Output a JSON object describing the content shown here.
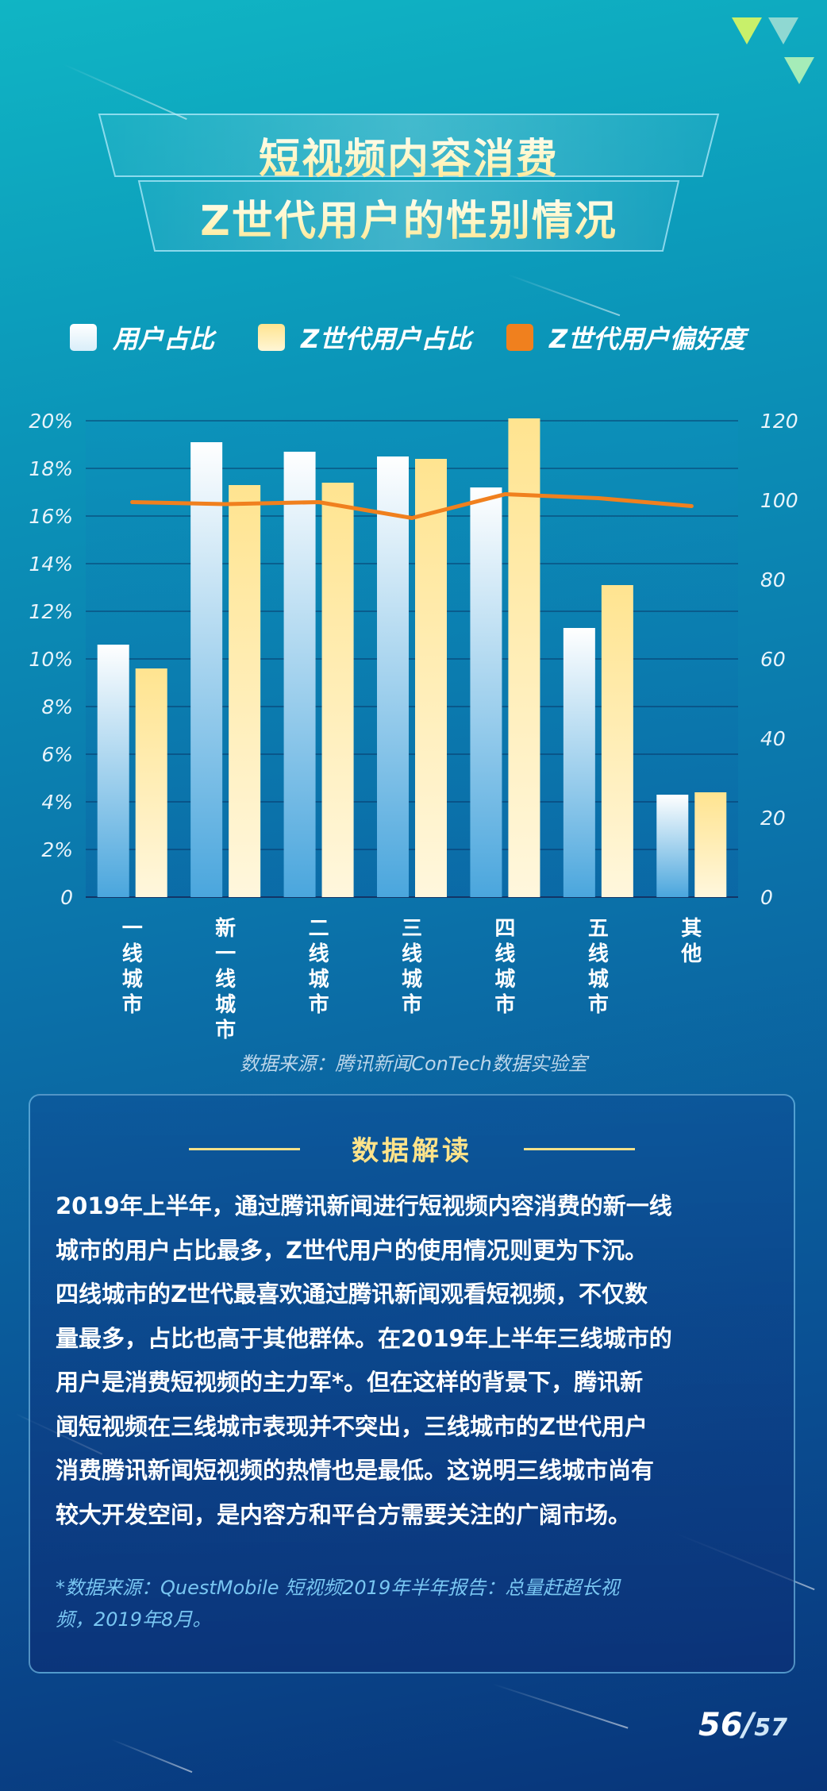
{
  "title": {
    "line1": "短视频内容消费",
    "line2": "Z世代用户的性别情况"
  },
  "colors": {
    "series1": "#ffffff",
    "series1_base": "#4aa6dd",
    "series2": "#ffe490",
    "series2_base": "#fff7dd",
    "line": "#f0801e",
    "accent": "#ffe38a"
  },
  "legend": [
    {
      "label": "用户占比",
      "swatch": "#ffffff"
    },
    {
      "label": "Z世代用户占比",
      "swatch": "#ffe490"
    },
    {
      "label": "Z世代用户偏好度",
      "swatch": "#f0801e"
    }
  ],
  "chart_data": {
    "type": "bar",
    "categories": [
      "一线城市",
      "新一线城市",
      "二线城市",
      "三线城市",
      "四线城市",
      "五线城市",
      "其他"
    ],
    "series": [
      {
        "name": "用户占比",
        "values": [
          10.6,
          19.1,
          18.7,
          18.5,
          17.2,
          11.3,
          4.3
        ],
        "axis": "left"
      },
      {
        "name": "Z世代用户占比",
        "values": [
          9.6,
          17.3,
          17.4,
          18.4,
          20.1,
          13.1,
          4.4
        ],
        "axis": "left"
      },
      {
        "name": "Z世代用户偏好度",
        "type": "line",
        "values": [
          99.5,
          99.0,
          99.5,
          95.5,
          101.5,
          100.5,
          98.5
        ],
        "axis": "right"
      }
    ],
    "left_axis": {
      "ylim": [
        0,
        20
      ],
      "ticks": [
        "0",
        "2%",
        "4%",
        "6%",
        "8%",
        "10%",
        "12%",
        "14%",
        "16%",
        "18%",
        "20%"
      ]
    },
    "right_axis": {
      "ylim": [
        0,
        120
      ],
      "ticks": [
        "0",
        "20",
        "40",
        "60",
        "80",
        "100",
        "120"
      ]
    },
    "grid": true
  },
  "source": "数据来源：腾讯新闻ConTech数据实验室",
  "panel": {
    "heading": "数据解读",
    "body_lines": [
      "2019年上半年，通过腾讯新闻进行短视频内容消费的新一线",
      "城市的用户占比最多，Z世代用户的使用情况则更为下沉。",
      "四线城市的Z世代最喜欢通过腾讯新闻观看短视频，不仅数",
      "量最多，占比也高于其他群体。在2019年上半年三线城市的",
      "用户是消费短视频的主力军*。但在这样的背景下，腾讯新",
      "闻短视频在三线城市表现并不突出，三线城市的Z世代用户",
      "消费腾讯新闻短视频的热情也是最低。这说明三线城市尚有",
      "较大开发空间，是内容方和平台方需要关注的广阔市场。"
    ],
    "note_lines": [
      "*数据来源：QuestMobile 短视频2019年半年报告：总量赶超长视",
      "频，2019年8月。"
    ]
  },
  "page": {
    "current": "56",
    "separator": "/",
    "total": "57"
  },
  "icons": {
    "logo": "triangle-logo-icon"
  }
}
